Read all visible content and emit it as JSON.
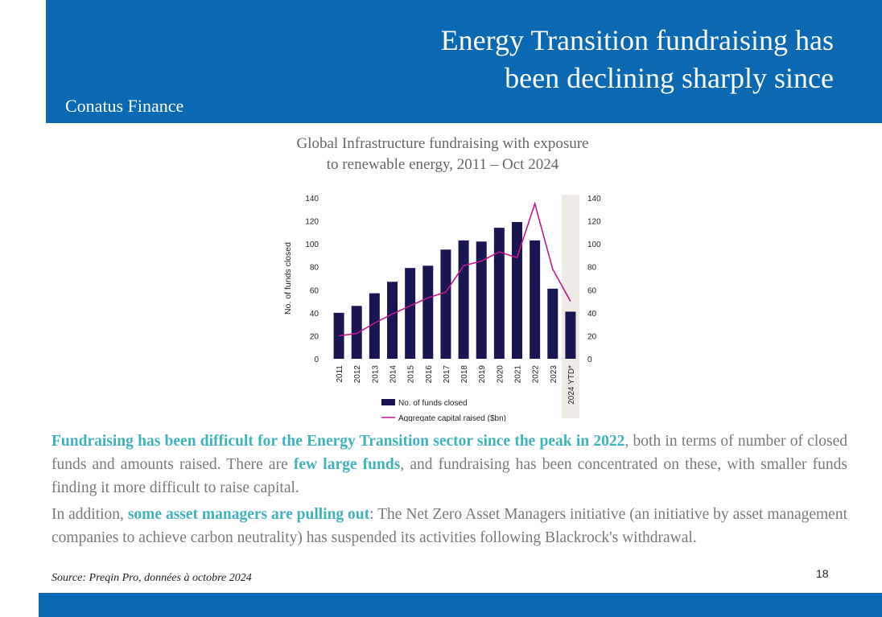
{
  "header": {
    "title_line1": "Energy Transition fundraising has",
    "title_line2": "been declining sharply since",
    "brand": "Conatus Finance"
  },
  "chart_title": {
    "line1": "Global Infrastructure fundraising with exposure",
    "line2": "to renewable energy, 2011 – Oct 2024"
  },
  "chart_data": {
    "type": "bar",
    "categories": [
      "2011",
      "2012",
      "2013",
      "2014",
      "2015",
      "2016",
      "2017",
      "2018",
      "2019",
      "2020",
      "2021",
      "2022",
      "2023",
      "2024 YTD*"
    ],
    "series": [
      {
        "name": "No. of funds closed",
        "type": "bar",
        "axis": "left",
        "color": "#1a1553",
        "values": [
          40,
          46,
          57,
          67,
          79,
          81,
          95,
          103,
          102,
          114,
          119,
          103,
          61,
          41
        ]
      },
      {
        "name": "Aggregate capital raised ($bn)",
        "type": "line",
        "axis": "right",
        "color": "#c2188b",
        "values": [
          20,
          22,
          31,
          39,
          46,
          53,
          58,
          81,
          85,
          93,
          88,
          135,
          78,
          50
        ]
      }
    ],
    "ylabel": "No. of funds closed",
    "ylim": [
      0,
      140
    ],
    "yticks": [
      0,
      20,
      40,
      60,
      80,
      100,
      120,
      140
    ],
    "y2lim": [
      0,
      140
    ],
    "highlight_category": "2024 YTD*",
    "legend_position": "bottom"
  },
  "paragraphs": {
    "p1": {
      "hl1": "Fundraising has been difficult for the Energy Transition sector since the peak in 2022",
      "t1": ", both in terms of number of closed funds and amounts raised. There are ",
      "hl2": "few large funds",
      "t2": ", and fundraising has been concentrated on these, with smaller funds finding it more difficult to raise capital."
    },
    "p2": {
      "t0": "In addition, ",
      "hl1": "some asset managers are pulling out",
      "t1": ": The Net Zero Asset Managers initiative (an initiative by asset management companies to achieve carbon neutrality) has suspended its activities following Blackrock's withdrawal."
    }
  },
  "source": "Source: Preqin Pro, données à octobre 2024",
  "page_number": "18",
  "colors": {
    "brand_blue": "#0b68b3",
    "highlight_teal": "#3fb3bd",
    "bar_navy": "#1a1553",
    "line_magenta": "#c2188b"
  }
}
